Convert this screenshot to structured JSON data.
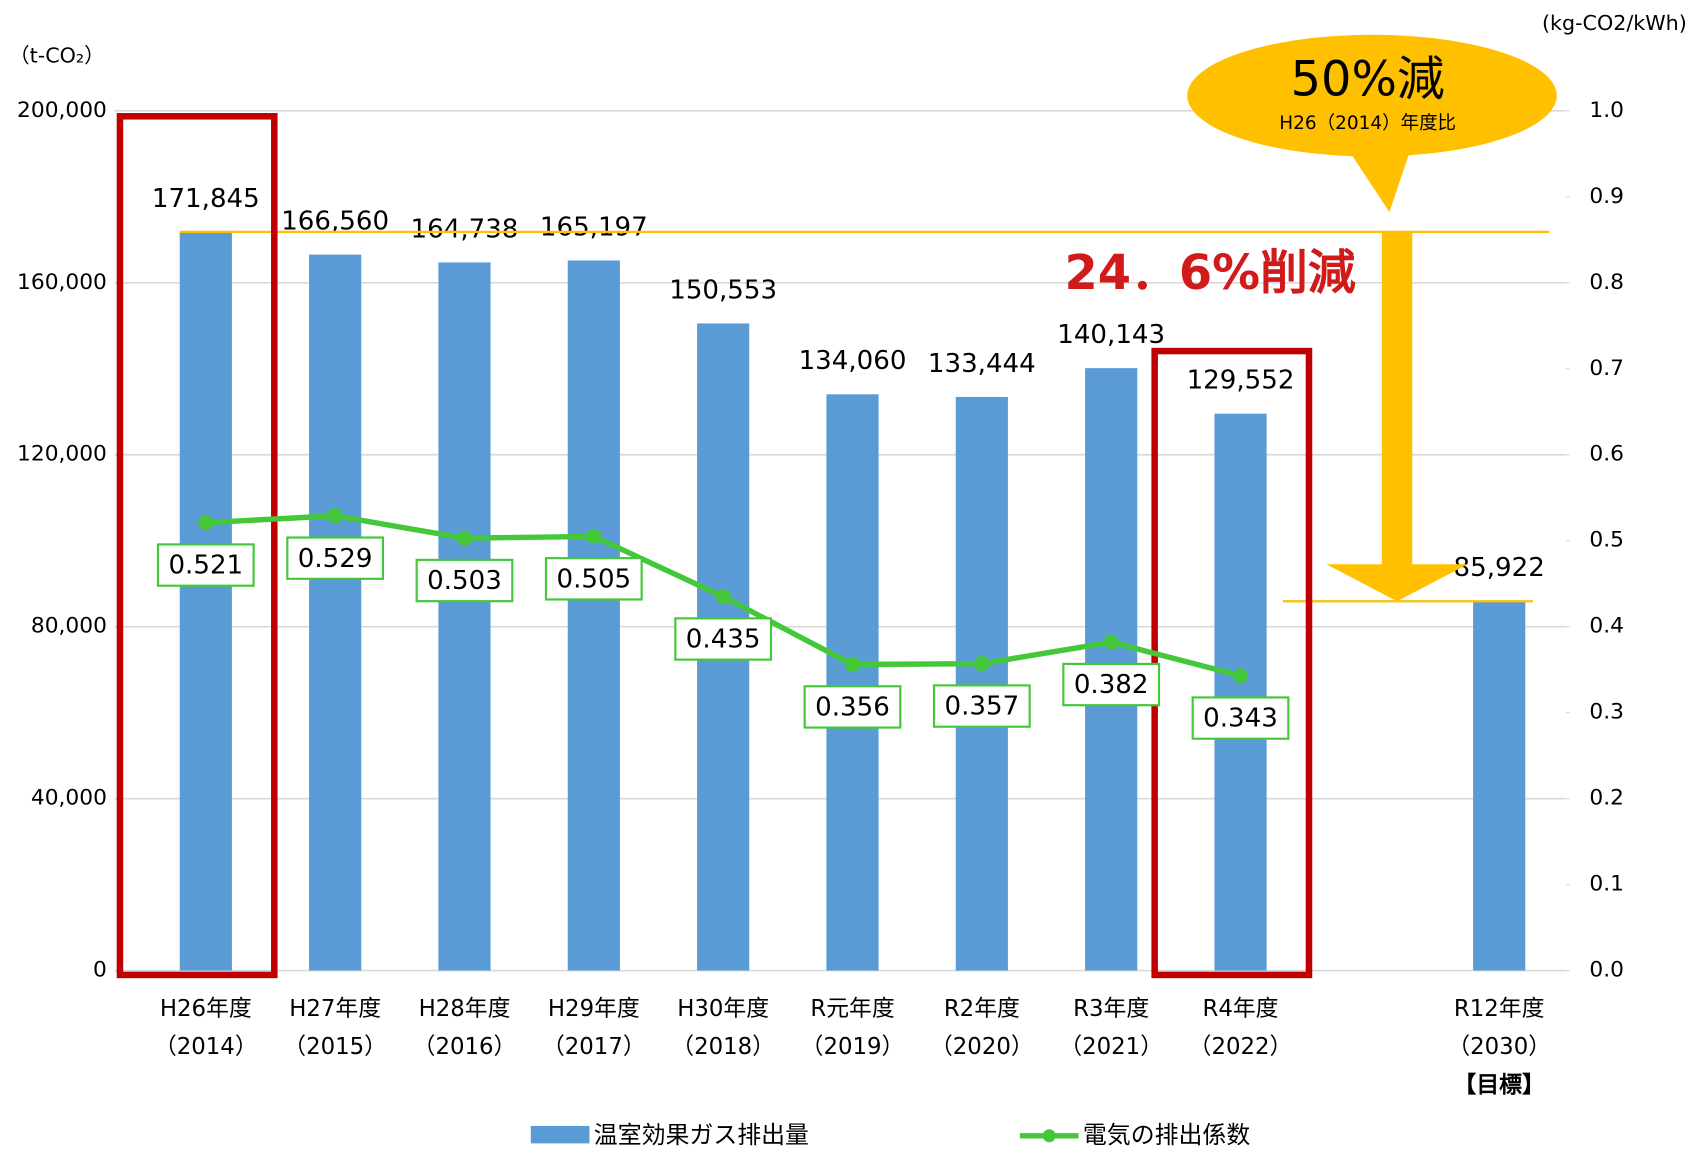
{
  "chart_data": {
    "type": "bar",
    "y_label": "（t-CO₂）",
    "y2_label": "(kg-CO2/kWh)",
    "categories": [
      [
        "H26年度",
        "（2014）"
      ],
      [
        "H27年度",
        "（2015）"
      ],
      [
        "H28年度",
        "（2016）"
      ],
      [
        "H29年度",
        "（2017）"
      ],
      [
        "H30年度",
        "（2018）"
      ],
      [
        "R元年度",
        "（2019）"
      ],
      [
        "R2年度",
        "（2020）"
      ],
      [
        "R3年度",
        "（2021）"
      ],
      [
        "R4年度",
        "（2022）"
      ],
      null,
      [
        "R12年度",
        "（2030）",
        "【目標】"
      ]
    ],
    "series": [
      {
        "name": "温室効果ガス排出量",
        "type": "bar",
        "color": "#5b9bd5",
        "values": [
          171845,
          166560,
          164738,
          165197,
          150553,
          134060,
          133444,
          140143,
          129552,
          null,
          85922
        ],
        "value_labels": [
          "171,845",
          "166,560",
          "164,738",
          "165,197",
          "150,553",
          "134,060",
          "133,444",
          "140,143",
          "129,552",
          null,
          "85,922"
        ]
      },
      {
        "name": "電気の排出係数",
        "type": "line",
        "axis": "y2",
        "color": "#44c83a",
        "values": [
          0.521,
          0.529,
          0.503,
          0.505,
          0.435,
          0.356,
          0.357,
          0.382,
          0.343,
          null,
          null
        ]
      }
    ],
    "ylim": [
      0,
      200000
    ],
    "yticks": [
      0,
      {
        "value": 40000,
        "label": "40,000"
      },
      {
        "value": 80000,
        "label": "80,000"
      },
      {
        "value": 120000,
        "label": "120,000"
      },
      {
        "value": 160000,
        "label": "160,000"
      },
      {
        "value": 200000,
        "label": "200,000"
      }
    ],
    "y2lim": [
      0,
      1
    ],
    "y2ticks": [
      {
        "value": 0,
        "label": "0.0"
      },
      0.1,
      0.2,
      0.3,
      0.4,
      0.5,
      0.6,
      0.7,
      0.8,
      0.9,
      {
        "value": 1,
        "label": "1.0"
      }
    ],
    "grid": true,
    "annotations": [
      "50%減",
      "H26（2014）年度比",
      "24．6%削減"
    ]
  }
}
